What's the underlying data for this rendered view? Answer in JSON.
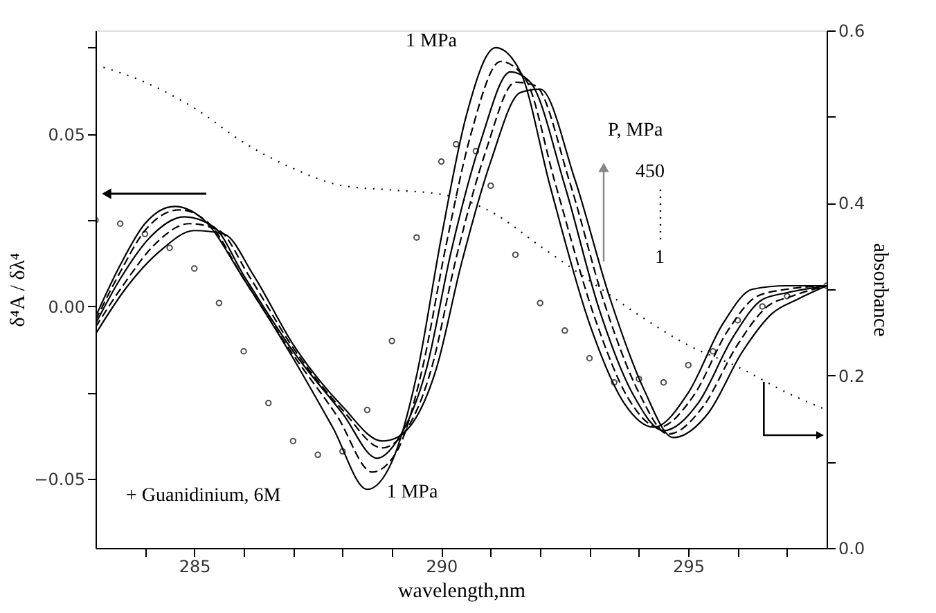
{
  "chart_data": {
    "type": "line",
    "xlabel": "wavelength,nm",
    "ylabel": "δ⁴A / δλ⁴",
    "y2label": "absorbance",
    "xlim": [
      283,
      297.8
    ],
    "ylim": [
      -0.07,
      0.08
    ],
    "y2lim": [
      0.0,
      0.6
    ],
    "xticks": [
      {
        "value": 284,
        "label": null
      },
      285,
      {
        "value": 286,
        "label": null
      },
      {
        "value": 287,
        "label": null
      },
      {
        "value": 288,
        "label": null
      },
      {
        "value": 289,
        "label": null
      },
      290,
      {
        "value": 291,
        "label": null
      },
      {
        "value": 292,
        "label": null
      },
      {
        "value": 293,
        "label": null
      },
      {
        "value": 294,
        "label": null
      },
      295,
      {
        "value": 296,
        "label": null
      },
      {
        "value": 297,
        "label": null
      }
    ],
    "yticks": [
      {
        "value": -0.05,
        "label": "−0.05"
      },
      {
        "value": -0.025,
        "label": null
      },
      {
        "value": 0,
        "label": "0.00"
      },
      {
        "value": 0.025,
        "label": null
      },
      0.05,
      {
        "value": 0.075,
        "label": null
      }
    ],
    "y2ticks": [
      {
        "value": 0,
        "label": "0.0"
      },
      {
        "value": 0.1,
        "label": null
      },
      0.2,
      {
        "value": 0.3,
        "label": null
      },
      0.4,
      {
        "value": 0.5,
        "label": null
      },
      0.6
    ],
    "grid": false,
    "series": [
      {
        "color": "#000000",
        "line_style": "solid",
        "x": [
          283,
          283.5,
          284,
          284.6,
          285.2,
          286,
          287,
          287.8,
          288.5,
          289,
          289.5,
          290,
          290.5,
          291.1,
          291.6,
          292.2,
          293,
          293.7,
          294.3,
          295,
          295.7,
          296.3,
          297,
          297.8
        ],
        "values": [
          -0.003,
          0.012,
          0.024,
          0.029,
          0.025,
          0.008,
          -0.015,
          -0.035,
          -0.053,
          -0.045,
          -0.02,
          0.02,
          0.055,
          0.075,
          0.068,
          0.035,
          -0.005,
          -0.028,
          -0.035,
          -0.025,
          -0.005,
          0.005,
          0.006,
          0.006
        ]
      },
      {
        "color": "#000000",
        "line_style": "dashed",
        "x": [
          283,
          283.5,
          284,
          284.7,
          285.3,
          286,
          287,
          287.9,
          288.6,
          289.1,
          289.6,
          290.1,
          290.6,
          291.2,
          291.7,
          292.3,
          293.1,
          293.8,
          294.4,
          295.1,
          295.8,
          296.4,
          297,
          297.8
        ],
        "values": [
          -0.004,
          0.01,
          0.022,
          0.028,
          0.024,
          0.008,
          -0.014,
          -0.032,
          -0.048,
          -0.042,
          -0.019,
          0.018,
          0.05,
          0.071,
          0.066,
          0.036,
          -0.003,
          -0.027,
          -0.035,
          -0.026,
          -0.007,
          0.003,
          0.005,
          0.006
        ]
      },
      {
        "color": "#000000",
        "line_style": "solid",
        "x": [
          283,
          283.5,
          284.1,
          284.8,
          285.4,
          286,
          287,
          288,
          288.7,
          289.1,
          289.7,
          290.2,
          290.8,
          291.4,
          291.8,
          292.5,
          293.2,
          293.9,
          294.5,
          295.2,
          295.9,
          296.5,
          297,
          297.8
        ],
        "values": [
          -0.005,
          0.008,
          0.02,
          0.026,
          0.023,
          0.009,
          -0.013,
          -0.031,
          -0.044,
          -0.039,
          -0.018,
          0.016,
          0.048,
          0.068,
          0.065,
          0.035,
          -0.001,
          -0.026,
          -0.036,
          -0.028,
          -0.009,
          0.002,
          0.004,
          0.006
        ]
      },
      {
        "color": "#000000",
        "line_style": "dashed",
        "x": [
          283,
          283.6,
          284.2,
          284.9,
          285.5,
          286.1,
          287,
          288,
          288.8,
          289.1,
          289.8,
          290.3,
          290.9,
          291.5,
          291.9,
          292.6,
          293.3,
          294,
          294.6,
          295.3,
          296,
          296.6,
          297.1,
          297.8
        ],
        "values": [
          -0.006,
          0.007,
          0.018,
          0.024,
          0.022,
          0.009,
          -0.012,
          -0.03,
          -0.041,
          -0.039,
          -0.018,
          0.014,
          0.045,
          0.065,
          0.064,
          0.036,
          0.001,
          -0.025,
          -0.037,
          -0.029,
          -0.011,
          0.0,
          0.003,
          0.006
        ]
      },
      {
        "color": "#000000",
        "line_style": "solid",
        "x": [
          283,
          283.6,
          284.3,
          285,
          285.6,
          286.2,
          287,
          288,
          288.8,
          289.1,
          289.9,
          290.4,
          291,
          291.6,
          292,
          292.7,
          293.4,
          294.1,
          294.7,
          295.4,
          296.1,
          296.7,
          297.2,
          297.8
        ],
        "values": [
          -0.008,
          0.005,
          0.016,
          0.022,
          0.021,
          0.009,
          -0.011,
          -0.029,
          -0.039,
          -0.038,
          -0.018,
          0.012,
          0.042,
          0.062,
          0.063,
          0.037,
          0.003,
          -0.024,
          -0.038,
          -0.031,
          -0.013,
          -0.002,
          0.002,
          0.006
        ]
      },
      {
        "type": "scatter",
        "marker": "circle",
        "color": "#000000",
        "x": [
          283,
          283.5,
          284,
          284.5,
          285,
          285.5,
          286,
          286.5,
          287,
          287.5,
          288,
          288.5,
          289,
          289.5,
          290,
          290.3,
          290.7,
          291,
          291.5,
          292,
          292.5,
          293,
          293.5,
          294,
          294.5,
          295,
          295.5,
          296,
          296.5,
          297,
          297.8
        ],
        "values": [
          0.025,
          0.024,
          0.021,
          0.017,
          0.011,
          0.001,
          -0.013,
          -0.028,
          -0.039,
          -0.043,
          -0.042,
          -0.03,
          -0.01,
          0.02,
          0.042,
          0.047,
          0.045,
          0.035,
          0.015,
          0.001,
          -0.007,
          -0.015,
          -0.022,
          -0.021,
          -0.022,
          -0.017,
          -0.013,
          -0.004,
          0.0,
          0.003,
          0.006
        ]
      },
      {
        "axis": "y2",
        "line_style": "dotted",
        "color": "#000000",
        "x": [
          283,
          284,
          285,
          286,
          287,
          288,
          289,
          290,
          291,
          292,
          293,
          294,
          295,
          296,
          297,
          297.8
        ],
        "values": [
          0.56,
          0.54,
          0.51,
          0.47,
          0.44,
          0.42,
          0.415,
          0.41,
          0.39,
          0.35,
          0.31,
          0.27,
          0.235,
          0.21,
          0.18,
          0.16
        ]
      }
    ],
    "annotations": [
      {
        "text": "1 MPa",
        "x": 291.1,
        "y": 0.075
      },
      {
        "text": "1 MPa",
        "x": 288.5,
        "y": -0.053
      },
      "+ Guanidinium, 6M",
      "P, MPa",
      "450",
      "1"
    ]
  }
}
